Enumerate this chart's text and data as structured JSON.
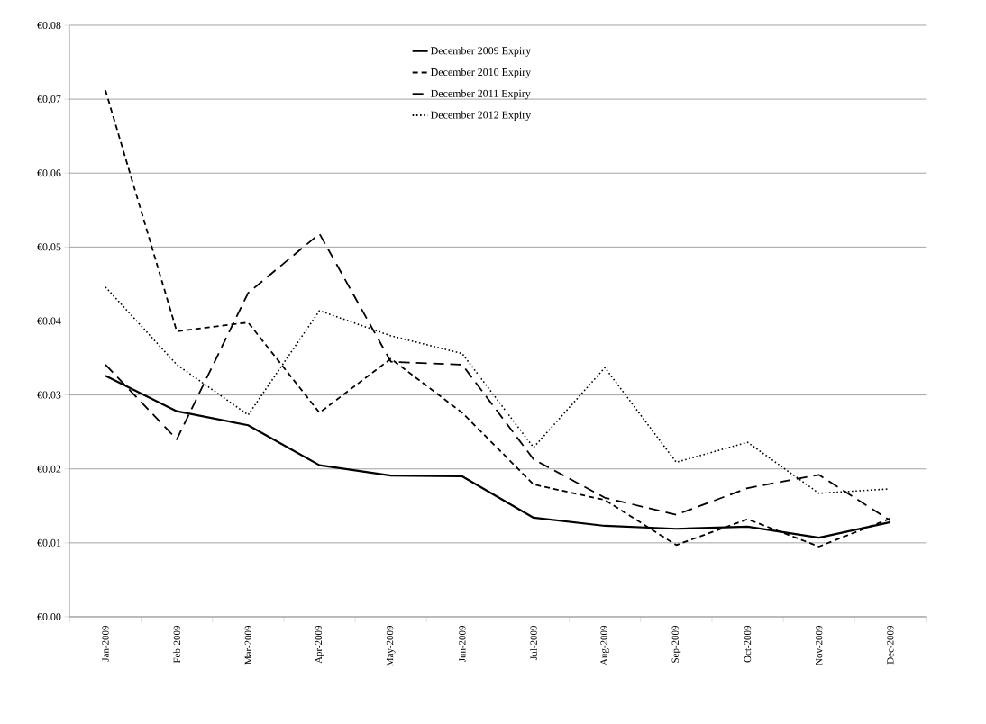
{
  "chart_data": {
    "type": "line",
    "categories": [
      "Jan-2009",
      "Feb-2009",
      "Mar-2009",
      "Apr-2009",
      "May-2009",
      "Jun-2009",
      "Jul-2009",
      "Aug-2009",
      "Sep-2009",
      "Oct-2009",
      "Nov-2009",
      "Dec-2009"
    ],
    "series": [
      {
        "name": "December 2009 Expiry",
        "color": "#000000",
        "line_style": "solid",
        "values": [
          0.0326,
          0.0278,
          0.0259,
          0.0205,
          0.0191,
          0.019,
          0.0134,
          0.0123,
          0.0119,
          0.0122,
          0.0107,
          0.0128
        ]
      },
      {
        "name": "December 2010 Expiry",
        "color": "#000000",
        "line_style": "dashed",
        "values": [
          0.0712,
          0.0386,
          0.0398,
          0.0276,
          0.0349,
          0.0276,
          0.0179,
          0.0158,
          0.0097,
          0.0132,
          0.0095,
          0.0133
        ]
      },
      {
        "name": "December 2011 Expiry",
        "color": "#000000",
        "line_style": "dashed",
        "values": [
          0.0341,
          0.024,
          0.0438,
          0.0518,
          0.0345,
          0.0341,
          0.0213,
          0.0161,
          0.0138,
          0.0174,
          0.0192,
          0.013
        ]
      },
      {
        "name": "December 2012 Expiry",
        "color": "#000000",
        "line_style": "dotted",
        "values": [
          0.0446,
          0.0341,
          0.0273,
          0.0414,
          0.038,
          0.0356,
          0.0229,
          0.0337,
          0.0209,
          0.0236,
          0.0167,
          0.0173
        ]
      }
    ],
    "ylim": [
      0,
      0.08
    ],
    "yticks": [
      {
        "value": 0,
        "label": "€0.00"
      },
      {
        "value": 0.01,
        "label": "€0.01"
      },
      {
        "value": 0.02,
        "label": "€0.02"
      },
      {
        "value": 0.03,
        "label": "€0.03"
      },
      {
        "value": 0.04,
        "label": "€0.04"
      },
      {
        "value": 0.05,
        "label": "€0.05"
      },
      {
        "value": 0.06,
        "label": "€0.06"
      },
      {
        "value": 0.07,
        "label": "€0.07"
      },
      {
        "value": 0.08,
        "label": "€0.08"
      }
    ],
    "grid": "y",
    "legend": "top",
    "marker": "none"
  }
}
